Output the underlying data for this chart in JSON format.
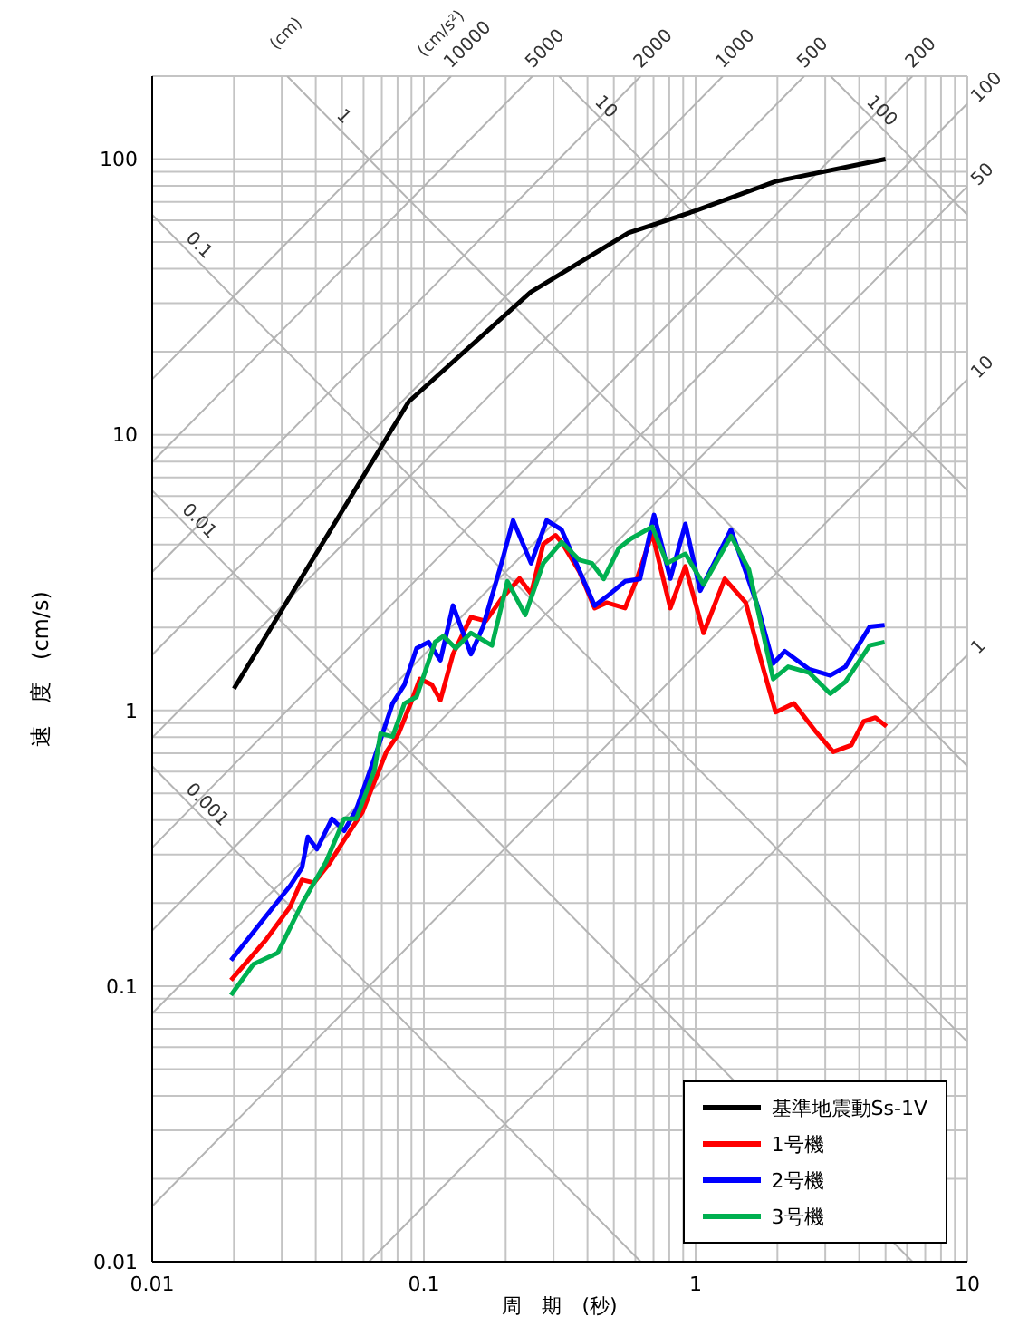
{
  "chart_data": {
    "type": "line",
    "xlabel": "周　期　(秒)",
    "ylabel": "速　度　(cm/s)",
    "log": "xy",
    "grid": true,
    "legend": "bottom right",
    "marker": "none",
    "line_style": "solid",
    "xlim": [
      0.01,
      10
    ],
    "xticks": [
      {
        "value": 0.01,
        "label": "0.01"
      },
      {
        "value": 0.02,
        "label": null
      },
      {
        "value": 0.03,
        "label": null
      },
      {
        "value": 0.04,
        "label": null
      },
      {
        "value": 0.05,
        "label": null
      },
      {
        "value": 0.06,
        "label": null
      },
      {
        "value": 0.07,
        "label": null
      },
      {
        "value": 0.08,
        "label": null
      },
      {
        "value": 0.09,
        "label": null
      },
      {
        "value": 0.1,
        "label": "0.1"
      },
      {
        "value": 0.2,
        "label": null
      },
      {
        "value": 0.3,
        "label": null
      },
      {
        "value": 0.4,
        "label": null
      },
      {
        "value": 0.5,
        "label": null
      },
      {
        "value": 0.6,
        "label": null
      },
      {
        "value": 0.7,
        "label": null
      },
      {
        "value": 0.8,
        "label": null
      },
      {
        "value": 0.9,
        "label": null
      },
      1,
      {
        "value": 2,
        "label": null
      },
      {
        "value": 3,
        "label": null
      },
      {
        "value": 4,
        "label": null
      },
      {
        "value": 5,
        "label": null
      },
      {
        "value": 6,
        "label": null
      },
      {
        "value": 7,
        "label": null
      },
      {
        "value": 8,
        "label": null
      },
      {
        "value": 9,
        "label": null
      },
      10
    ],
    "ylim": [
      0.01,
      200
    ],
    "yticks": [
      {
        "value": 0.01,
        "label": "0.01"
      },
      {
        "value": 0.02,
        "label": null
      },
      {
        "value": 0.03,
        "label": null
      },
      {
        "value": 0.04,
        "label": null
      },
      {
        "value": 0.05,
        "label": null
      },
      {
        "value": 0.06,
        "label": null
      },
      {
        "value": 0.07,
        "label": null
      },
      {
        "value": 0.08,
        "label": null
      },
      {
        "value": 0.09,
        "label": null
      },
      {
        "value": 0.1,
        "label": "0.1"
      },
      {
        "value": 0.2,
        "label": null
      },
      {
        "value": 0.3,
        "label": null
      },
      {
        "value": 0.4,
        "label": null
      },
      {
        "value": 0.5,
        "label": null
      },
      {
        "value": 0.6,
        "label": null
      },
      {
        "value": 0.7,
        "label": null
      },
      {
        "value": 0.8,
        "label": null
      },
      {
        "value": 0.9,
        "label": null
      },
      1,
      {
        "value": 2,
        "label": null
      },
      {
        "value": 3,
        "label": null
      },
      {
        "value": 4,
        "label": null
      },
      {
        "value": 5,
        "label": null
      },
      {
        "value": 6,
        "label": null
      },
      {
        "value": 7,
        "label": null
      },
      {
        "value": 8,
        "label": null
      },
      {
        "value": 9,
        "label": null
      },
      10,
      {
        "value": 20,
        "label": null
      },
      {
        "value": 30,
        "label": null
      },
      {
        "value": 40,
        "label": null
      },
      {
        "value": 50,
        "label": null
      },
      {
        "value": 60,
        "label": null
      },
      {
        "value": 70,
        "label": null
      },
      {
        "value": 80,
        "label": null
      },
      {
        "value": 90,
        "label": null
      },
      100,
      {
        "value": 200,
        "label": null
      }
    ],
    "series": [
      {
        "color": "#b4b4b4",
        "x": [
          0.01,
          0.628
        ],
        "values": [
          0.628,
          0.01
        ]
      },
      {
        "color": "#b4b4b4",
        "x": [
          0.01,
          6.28
        ],
        "values": [
          6.28,
          0.01
        ]
      },
      {
        "color": "#b4b4b4",
        "x": [
          0.01,
          10
        ],
        "values": [
          62.8,
          0.0628
        ]
      },
      {
        "color": "#b4b4b4",
        "x": [
          0.0314,
          10
        ],
        "values": [
          200,
          0.628
        ]
      },
      {
        "color": "#b4b4b4",
        "x": [
          0.314,
          10
        ],
        "values": [
          200,
          6.28
        ]
      },
      {
        "color": "#b4b4b4",
        "x": [
          3.14,
          10
        ],
        "values": [
          200,
          62.8
        ]
      },
      {
        "color": "#b4b4b4",
        "x": [
          0.0628,
          10
        ],
        "values": [
          0.01,
          1.59
        ]
      },
      {
        "color": "#b4b4b4",
        "x": [
          0.01,
          10
        ],
        "values": [
          0.0159,
          15.9
        ]
      },
      {
        "color": "#b4b4b4",
        "x": [
          0.01,
          10
        ],
        "values": [
          0.0796,
          79.6
        ]
      },
      {
        "color": "#b4b4b4",
        "x": [
          0.01,
          10
        ],
        "values": [
          0.159,
          159
        ]
      },
      {
        "color": "#b4b4b4",
        "x": [
          0.01,
          6.28
        ],
        "values": [
          0.318,
          200
        ]
      },
      {
        "color": "#b4b4b4",
        "x": [
          0.01,
          2.51
        ],
        "values": [
          0.796,
          200
        ]
      },
      {
        "color": "#b4b4b4",
        "x": [
          0.01,
          1.26
        ],
        "values": [
          1.59,
          200
        ]
      },
      {
        "color": "#b4b4b4",
        "x": [
          0.01,
          0.628
        ],
        "values": [
          3.18,
          200
        ]
      },
      {
        "color": "#b4b4b4",
        "x": [
          0.01,
          0.251
        ],
        "values": [
          7.96,
          200
        ]
      },
      {
        "color": "#b4b4b4",
        "x": [
          0.01,
          0.126
        ],
        "values": [
          15.9,
          200
        ]
      },
      {
        "name": "基準地震動Ss-1V",
        "color": "#000000",
        "x": [
          0.02,
          0.088,
          0.247,
          0.566,
          1,
          1.97,
          5
        ],
        "values": [
          1.2,
          13.2,
          32.9,
          54,
          65,
          83,
          100
        ]
      },
      {
        "name": "1号機",
        "color": "#ff0000",
        "x": [
          0.0195,
          0.0262,
          0.0322,
          0.0356,
          0.0394,
          0.0448,
          0.0509,
          0.0593,
          0.0658,
          0.0728,
          0.0807,
          0.0894,
          0.0966,
          0.107,
          0.115,
          0.128,
          0.149,
          0.169,
          0.193,
          0.225,
          0.248,
          0.275,
          0.305,
          0.321,
          0.374,
          0.425,
          0.471,
          0.55,
          0.609,
          0.692,
          0.807,
          0.917,
          1.07,
          1.28,
          1.53,
          1.74,
          1.97,
          2.3,
          2.75,
          3.21,
          3.74,
          4.15,
          4.59,
          5.04
        ],
        "values": [
          0.105,
          0.147,
          0.194,
          0.243,
          0.237,
          0.278,
          0.339,
          0.426,
          0.552,
          0.708,
          0.824,
          1.06,
          1.3,
          1.24,
          1.09,
          1.6,
          2.18,
          2.11,
          2.54,
          3.01,
          2.65,
          4.01,
          4.32,
          4.08,
          3.18,
          2.35,
          2.46,
          2.35,
          3.01,
          4.41,
          2.35,
          3.33,
          1.91,
          3,
          2.46,
          1.52,
          0.985,
          1.06,
          0.845,
          0.708,
          0.748,
          0.912,
          0.942,
          0.875
        ]
      },
      {
        "name": "2号機",
        "color": "#0000ff",
        "x": [
          0.0195,
          0.0262,
          0.0322,
          0.0356,
          0.0374,
          0.0404,
          0.0459,
          0.0509,
          0.0564,
          0.0658,
          0.0767,
          0.0848,
          0.094,
          0.104,
          0.115,
          0.128,
          0.149,
          0.165,
          0.193,
          0.213,
          0.248,
          0.283,
          0.321,
          0.385,
          0.425,
          0.471,
          0.55,
          0.624,
          0.703,
          0.807,
          0.917,
          1.04,
          1.35,
          1.69,
          1.93,
          2.13,
          2.62,
          3.13,
          3.56,
          4.37,
          4.96
        ],
        "values": [
          0.124,
          0.179,
          0.231,
          0.269,
          0.348,
          0.314,
          0.405,
          0.366,
          0.437,
          0.673,
          1.06,
          1.24,
          1.68,
          1.77,
          1.52,
          2.4,
          1.6,
          2.01,
          3.42,
          4.89,
          3.42,
          4.89,
          4.53,
          3,
          2.4,
          2.59,
          2.94,
          3,
          5.12,
          3.01,
          4.75,
          2.72,
          4.53,
          2.4,
          1.48,
          1.64,
          1.41,
          1.34,
          1.44,
          2.01,
          2.04
        ]
      },
      {
        "name": "3号機",
        "color": "#00b050",
        "x": [
          0.0195,
          0.0236,
          0.029,
          0.0356,
          0.0437,
          0.0509,
          0.0564,
          0.0658,
          0.0692,
          0.0767,
          0.0848,
          0.094,
          0.11,
          0.118,
          0.131,
          0.149,
          0.178,
          0.203,
          0.236,
          0.275,
          0.321,
          0.374,
          0.415,
          0.459,
          0.522,
          0.578,
          0.692,
          0.785,
          0.917,
          1.07,
          1.35,
          1.57,
          1.93,
          2.19,
          2.62,
          3.13,
          3.56,
          4.37,
          4.96
        ],
        "values": [
          0.0927,
          0.12,
          0.132,
          0.199,
          0.283,
          0.405,
          0.405,
          0.607,
          0.824,
          0.804,
          1.06,
          1.12,
          1.77,
          1.86,
          1.68,
          1.91,
          1.72,
          2.94,
          2.22,
          3.42,
          4.08,
          3.51,
          3.42,
          3,
          3.88,
          4.2,
          4.64,
          3.42,
          3.7,
          2.86,
          4.29,
          3.25,
          1.3,
          1.44,
          1.37,
          1.15,
          1.27,
          1.72,
          1.77
        ]
      }
    ],
    "annotations": [
      {
        "text": "0.1",
        "x": 0.0128,
        "y": 49.1
      },
      {
        "text": "0.01",
        "x": 0.0124,
        "y": 5.07
      },
      {
        "text": "0.001",
        "x": 0.0128,
        "y": 0.491
      },
      {
        "text": "1",
        "x": 0.046,
        "y": 136.6
      },
      {
        "text": "10",
        "x": 0.41,
        "y": 153.2
      },
      {
        "text": "100",
        "x": 4.1,
        "y": 153.2
      },
      "(cm)",
      "(cm/s²)",
      {
        "text": "10000",
        "x": 0.126,
        "y": 200
      },
      {
        "text": "5000",
        "x": 0.251,
        "y": 200
      },
      {
        "text": "2000",
        "x": 0.628,
        "y": 200
      },
      {
        "text": "1000",
        "x": 1.26,
        "y": 200
      },
      {
        "text": "500",
        "x": 2.51,
        "y": 200
      },
      {
        "text": "200",
        "x": 6.28,
        "y": 200
      },
      {
        "text": "100",
        "x": 10,
        "y": 159
      },
      {
        "text": "50",
        "x": 10,
        "y": 79.6
      },
      {
        "text": "10",
        "x": 10,
        "y": 15.9
      },
      {
        "text": "1",
        "x": 10,
        "y": 1.59
      }
    ]
  }
}
